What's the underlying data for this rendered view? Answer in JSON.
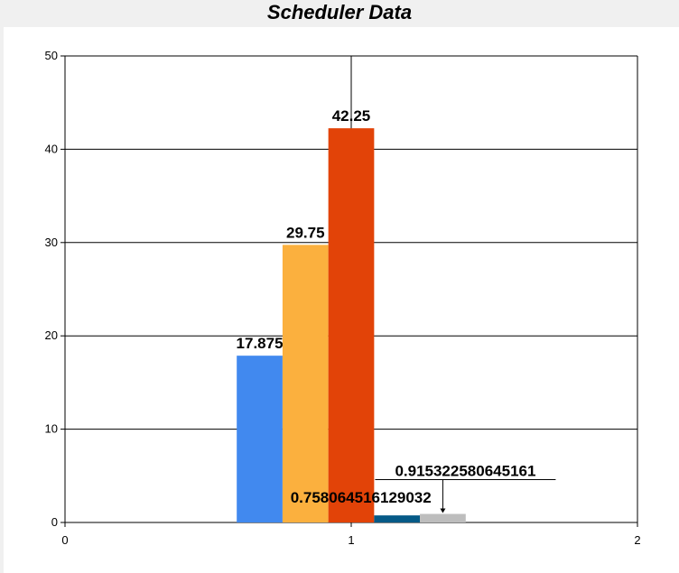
{
  "chart_data": {
    "type": "bar",
    "title": "Scheduler Data",
    "xlabel": "",
    "ylabel": "",
    "xlim": [
      0,
      2
    ],
    "ylim": [
      0,
      50
    ],
    "x_ticks": [
      "0",
      "1",
      "2"
    ],
    "y_ticks": [
      "0",
      "10",
      "20",
      "30",
      "40",
      "50"
    ],
    "grid": true,
    "category_x": 1,
    "bars": [
      {
        "value": 17.875,
        "label": "17.875",
        "color": "#4189ef"
      },
      {
        "value": 29.75,
        "label": "29.75",
        "color": "#fbb03e"
      },
      {
        "value": 42.25,
        "label": "42.25",
        "color": "#e24308"
      },
      {
        "value": 0.758064516129032,
        "label": "0.758064516129032",
        "color": "#055a87"
      },
      {
        "value": 0.915322580645161,
        "label": "0.915322580645161",
        "color": "#bdbdbd"
      }
    ]
  }
}
